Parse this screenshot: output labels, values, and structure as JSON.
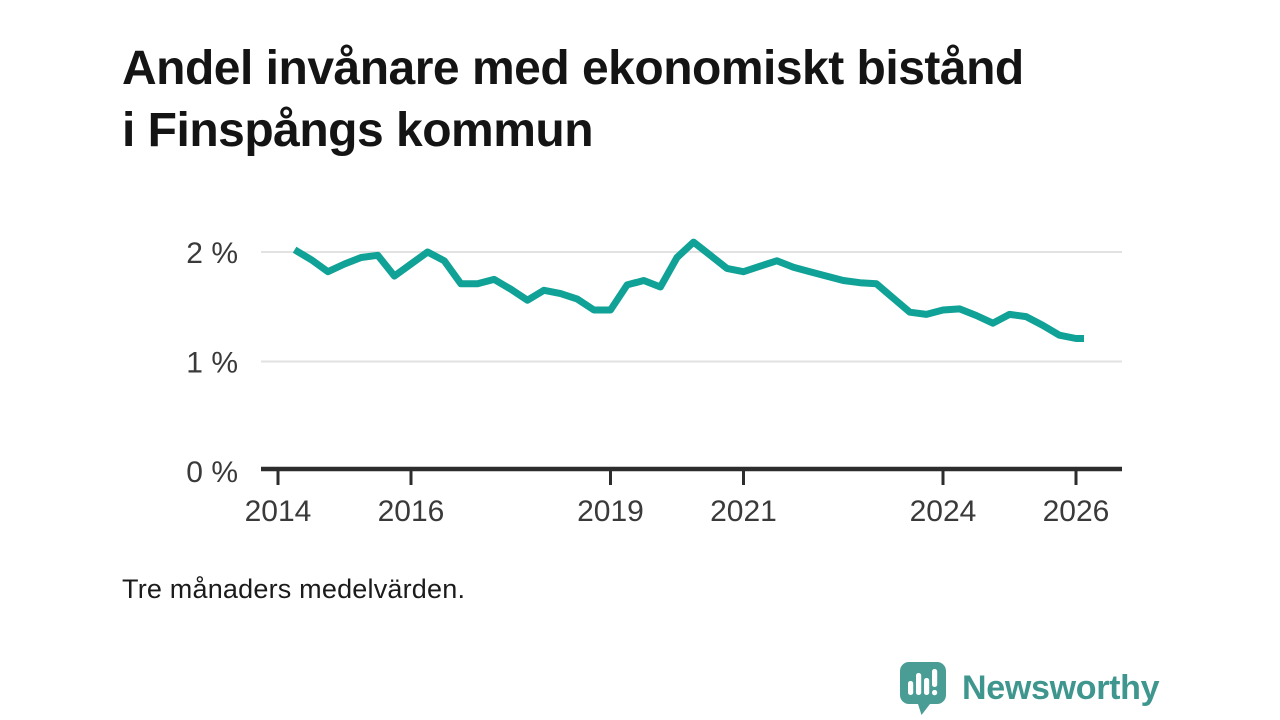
{
  "header": {
    "title": "Andel invånare med ekonomiskt bistånd i Finspångs kommun"
  },
  "footnote": "Tre månaders medelvärden.",
  "branding": {
    "name": "Newsworthy",
    "icon": "newsworthy-speech-bubble-bar-chart-icon"
  },
  "colors": {
    "line": "#10a296",
    "grid": "#e2e2e2",
    "axis": "#2d2d2d",
    "tick_label": "#3a3a3a",
    "title_text": "#141414",
    "brand_icon": "#4a9d95",
    "brand_text": "#3f968e",
    "icon_glyph": "#ffffff"
  },
  "chart_data": {
    "type": "line",
    "title": "Andel invånare med ekonomiskt bistånd i Finspångs kommun",
    "subtitle": "Tre månaders medelvärden.",
    "unit": "%",
    "xlabel": "",
    "ylabel": "",
    "grid": "horizontal",
    "legend": "none",
    "xlim": [
      2013.74,
      2026.69
    ],
    "ylim": [
      0,
      2.3
    ],
    "x_ticks": [
      {
        "value": 2014,
        "label": "2014"
      },
      {
        "value": 2016,
        "label": "2016"
      },
      {
        "value": 2019,
        "label": "2019"
      },
      {
        "value": 2021,
        "label": "2021"
      },
      {
        "value": 2024,
        "label": "2024"
      },
      {
        "value": 2026,
        "label": "2026"
      }
    ],
    "y_ticks": [
      {
        "value": 0,
        "label": "0 %"
      },
      {
        "value": 1,
        "label": "1 %"
      },
      {
        "value": 2,
        "label": "2 %"
      }
    ],
    "series": [
      {
        "name": "Finspångs kommun",
        "points": [
          [
            2014.25,
            2.02
          ],
          [
            2014.5,
            1.93
          ],
          [
            2014.75,
            1.82
          ],
          [
            2015.0,
            1.89
          ],
          [
            2015.25,
            1.95
          ],
          [
            2015.5,
            1.97
          ],
          [
            2015.75,
            1.78
          ],
          [
            2016.0,
            1.89
          ],
          [
            2016.25,
            2.0
          ],
          [
            2016.5,
            1.92
          ],
          [
            2016.75,
            1.71
          ],
          [
            2017.0,
            1.71
          ],
          [
            2017.25,
            1.75
          ],
          [
            2017.5,
            1.66
          ],
          [
            2017.75,
            1.56
          ],
          [
            2018.0,
            1.65
          ],
          [
            2018.25,
            1.62
          ],
          [
            2018.5,
            1.57
          ],
          [
            2018.75,
            1.47
          ],
          [
            2019.0,
            1.47
          ],
          [
            2019.25,
            1.7
          ],
          [
            2019.5,
            1.74
          ],
          [
            2019.75,
            1.68
          ],
          [
            2020.0,
            1.95
          ],
          [
            2020.25,
            2.09
          ],
          [
            2020.5,
            1.97
          ],
          [
            2020.75,
            1.85
          ],
          [
            2021.0,
            1.82
          ],
          [
            2021.25,
            1.87
          ],
          [
            2021.5,
            1.92
          ],
          [
            2021.75,
            1.86
          ],
          [
            2022.0,
            1.82
          ],
          [
            2022.25,
            1.78
          ],
          [
            2022.5,
            1.74
          ],
          [
            2022.75,
            1.72
          ],
          [
            2023.0,
            1.71
          ],
          [
            2023.25,
            1.58
          ],
          [
            2023.5,
            1.45
          ],
          [
            2023.75,
            1.43
          ],
          [
            2024.0,
            1.47
          ],
          [
            2024.25,
            1.48
          ],
          [
            2024.5,
            1.42
          ],
          [
            2024.75,
            1.35
          ],
          [
            2025.0,
            1.43
          ],
          [
            2025.25,
            1.41
          ],
          [
            2025.5,
            1.33
          ],
          [
            2025.75,
            1.24
          ],
          [
            2026.0,
            1.21
          ],
          [
            2026.12,
            1.21
          ]
        ]
      }
    ]
  }
}
